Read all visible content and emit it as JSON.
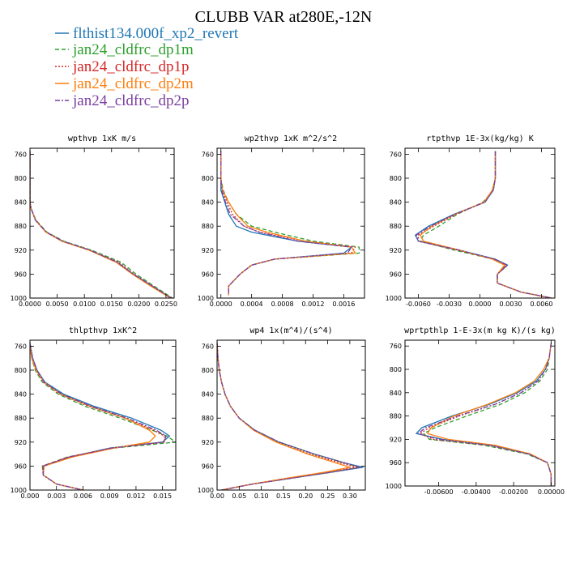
{
  "title": "CLUBB VAR at280E,-12N",
  "legend": [
    {
      "name": "flthist134.000f_xp2_revert",
      "color": "#1f77b4",
      "dash": "solid"
    },
    {
      "name": "jan24_cldfrc_dp1m",
      "color": "#2ca02c",
      "dash": "dash"
    },
    {
      "name": "jan24_cldfrc_dp1p",
      "color": "#d62728",
      "dash": "dot"
    },
    {
      "name": "jan24_cldfrc_dp2m",
      "color": "#ff7f0e",
      "dash": "solid"
    },
    {
      "name": "jan24_cldfrc_dp2p",
      "color": "#7b3fa0",
      "dash": "dashdot"
    }
  ],
  "chart_data": [
    {
      "type": "line",
      "title": "wpthvp  1xK m/s",
      "xlim": [
        0,
        0.0265
      ],
      "ylim": [
        1000,
        750
      ],
      "xticks": [
        0,
        0.005,
        0.01,
        0.015,
        0.02,
        0.025
      ],
      "xtick_labels": [
        "0.0000",
        "0.0050",
        "0.0100",
        "0.0150",
        "0.0200",
        "0.0250"
      ],
      "yticks": [
        760,
        800,
        840,
        880,
        920,
        960,
        1000
      ],
      "ytick_labels": [
        "760",
        "800",
        "840",
        "880",
        "920",
        "960",
        "1000"
      ],
      "y": [
        755,
        800,
        840,
        850,
        870,
        890,
        905,
        920,
        940,
        960,
        980,
        1000
      ],
      "series": [
        {
          "name": "flthist134.000f_xp2_revert",
          "x": [
            0,
            0,
            0,
            0.0002,
            0.001,
            0.003,
            0.006,
            0.011,
            0.016,
            0.019,
            0.0225,
            0.026
          ]
        },
        {
          "name": "jan24_cldfrc_dp1m",
          "x": [
            0,
            0,
            0,
            0.0002,
            0.0011,
            0.0031,
            0.0062,
            0.0113,
            0.0167,
            0.0195,
            0.0228,
            0.0262
          ]
        },
        {
          "name": "jan24_cldfrc_dp1p",
          "x": [
            0,
            0,
            0,
            0.0002,
            0.001,
            0.003,
            0.006,
            0.011,
            0.0163,
            0.0191,
            0.0226,
            0.026
          ]
        },
        {
          "name": "jan24_cldfrc_dp2m",
          "x": [
            0,
            0,
            0,
            0.0002,
            0.001,
            0.0029,
            0.0058,
            0.0108,
            0.0158,
            0.0188,
            0.0222,
            0.0258
          ]
        },
        {
          "name": "jan24_cldfrc_dp2p",
          "x": [
            0,
            0,
            0,
            0.0002,
            0.001,
            0.003,
            0.006,
            0.011,
            0.016,
            0.019,
            0.0225,
            0.026
          ]
        }
      ]
    },
    {
      "type": "line",
      "title": "wp2thvp  1xK m^2/s^2",
      "xlim": [
        -5e-05,
        0.00187
      ],
      "ylim": [
        1000,
        750
      ],
      "xticks": [
        0,
        0.0004,
        0.0008,
        0.0012,
        0.0016
      ],
      "xtick_labels": [
        "0.0000",
        "0.0004",
        "0.0008",
        "0.0012",
        "0.0016"
      ],
      "yticks": [
        760,
        800,
        840,
        880,
        920,
        960,
        1000
      ],
      "ytick_labels": [
        "760",
        "800",
        "840",
        "880",
        "920",
        "960",
        "1000"
      ],
      "y": [
        755,
        800,
        820,
        840,
        860,
        880,
        890,
        905,
        915,
        925,
        935,
        945,
        960,
        980,
        995
      ],
      "series": [
        {
          "name": "flthist134.000f_xp2_revert",
          "x": [
            0,
            0,
            0,
            5e-05,
            0.0001,
            0.0002,
            0.0004,
            0.001,
            0.0017,
            0.0016,
            0.0007,
            0.0004,
            0.00025,
            0.0001,
            0.0001
          ]
        },
        {
          "name": "jan24_cldfrc_dp1m",
          "x": [
            0,
            0,
            3e-05,
            0.0001,
            0.0002,
            0.0004,
            0.0007,
            0.0012,
            0.0018,
            0.0018,
            0.0007,
            0.0004,
            0.00025,
            0.0001,
            0.0001
          ]
        },
        {
          "name": "jan24_cldfrc_dp1p",
          "x": [
            0,
            0,
            2e-05,
            8e-05,
            0.00015,
            0.0003,
            0.0005,
            0.0011,
            0.00175,
            0.0017,
            0.0007,
            0.0004,
            0.00025,
            0.0001,
            0.0001
          ]
        },
        {
          "name": "jan24_cldfrc_dp2m",
          "x": [
            0,
            0,
            2e-05,
            0.0001,
            0.0002,
            0.00035,
            0.0006,
            0.0011,
            0.0017,
            0.00175,
            0.0007,
            0.0004,
            0.00025,
            0.0001,
            0.0001
          ]
        },
        {
          "name": "jan24_cldfrc_dp2p",
          "x": [
            0,
            0,
            1e-05,
            6e-05,
            0.00012,
            0.0003,
            0.0005,
            0.001,
            0.0017,
            0.00165,
            0.0007,
            0.0004,
            0.00025,
            0.0001,
            0.0001
          ]
        }
      ]
    },
    {
      "type": "line",
      "title": "rtpthvp  1E-3x(kg/kg) K",
      "xlim": [
        -0.0073,
        0.0073
      ],
      "ylim": [
        1000,
        750
      ],
      "xticks": [
        -0.006,
        -0.003,
        0,
        0.003,
        0.006
      ],
      "xtick_labels": [
        "-0.0060",
        "-0.0030",
        "0.0000",
        "0.0030",
        "0.0060"
      ],
      "yticks": [
        760,
        800,
        840,
        880,
        920,
        960,
        1000
      ],
      "ytick_labels": [
        "760",
        "800",
        "840",
        "880",
        "920",
        "960",
        "1000"
      ],
      "y": [
        755,
        800,
        820,
        840,
        860,
        880,
        895,
        905,
        920,
        935,
        945,
        960,
        975,
        990,
        1000
      ],
      "series": [
        {
          "name": "flthist134.000f_xp2_revert",
          "x": [
            0.0015,
            0.0015,
            0.0013,
            0.0005,
            -0.0025,
            -0.005,
            -0.0063,
            -0.006,
            -0.002,
            0.0015,
            0.0027,
            0.0017,
            0.0017,
            0.004,
            0.007
          ]
        },
        {
          "name": "jan24_cldfrc_dp1m",
          "x": [
            0.0015,
            0.0015,
            0.0013,
            0.0003,
            -0.0022,
            -0.004,
            -0.0055,
            -0.0058,
            -0.0025,
            0.0013,
            0.0025,
            0.0017,
            0.0017,
            0.004,
            0.007
          ]
        },
        {
          "name": "jan24_cldfrc_dp1p",
          "x": [
            0.0015,
            0.0015,
            0.0013,
            0.0004,
            -0.0023,
            -0.0045,
            -0.006,
            -0.006,
            -0.0022,
            0.0014,
            0.0026,
            0.0017,
            0.0017,
            0.004,
            0.007
          ]
        },
        {
          "name": "jan24_cldfrc_dp2m",
          "x": [
            0.0015,
            0.0015,
            0.0012,
            0.0004,
            -0.0024,
            -0.0047,
            -0.0058,
            -0.0055,
            -0.002,
            0.0012,
            0.0024,
            0.0017,
            0.0017,
            0.004,
            0.007
          ]
        },
        {
          "name": "jan24_cldfrc_dp2p",
          "x": [
            0.0015,
            0.0015,
            0.0013,
            0.0005,
            -0.0024,
            -0.0048,
            -0.0062,
            -0.006,
            -0.002,
            0.0014,
            0.0027,
            0.0017,
            0.0017,
            0.004,
            0.007
          ]
        }
      ]
    },
    {
      "type": "line",
      "title": "thlpthvp  1xK^2",
      "xlim": [
        0,
        0.0165
      ],
      "ylim": [
        1000,
        750
      ],
      "xticks": [
        0,
        0.003,
        0.006,
        0.009,
        0.012,
        0.015
      ],
      "xtick_labels": [
        "0.000",
        "0.003",
        "0.006",
        "0.009",
        "0.012",
        "0.015"
      ],
      "yticks": [
        760,
        800,
        840,
        880,
        920,
        960,
        1000
      ],
      "ytick_labels": [
        "760",
        "800",
        "840",
        "880",
        "920",
        "960",
        "1000"
      ],
      "y": [
        755,
        780,
        800,
        820,
        840,
        860,
        880,
        900,
        910,
        920,
        930,
        945,
        960,
        975,
        990,
        1000
      ],
      "series": [
        {
          "name": "flthist134.000f_xp2_revert",
          "x": [
            0,
            0.0003,
            0.0008,
            0.0017,
            0.0038,
            0.0072,
            0.0115,
            0.0148,
            0.0158,
            0.015,
            0.009,
            0.0045,
            0.0015,
            0.0015,
            0.003,
            0.006
          ]
        },
        {
          "name": "jan24_cldfrc_dp1m",
          "x": [
            0,
            0.0002,
            0.0006,
            0.0014,
            0.0032,
            0.0062,
            0.0102,
            0.0138,
            0.0155,
            0.0165,
            0.0095,
            0.0042,
            0.0014,
            0.0015,
            0.003,
            0.006
          ]
        },
        {
          "name": "jan24_cldfrc_dp1p",
          "x": [
            0,
            0.0002,
            0.0007,
            0.0015,
            0.0034,
            0.0066,
            0.0107,
            0.014,
            0.0152,
            0.0152,
            0.0092,
            0.0043,
            0.0014,
            0.0015,
            0.003,
            0.006
          ]
        },
        {
          "name": "jan24_cldfrc_dp2m",
          "x": [
            0,
            0.0002,
            0.0007,
            0.0016,
            0.0035,
            0.0068,
            0.0108,
            0.0135,
            0.0142,
            0.0135,
            0.0095,
            0.0048,
            0.0016,
            0.0015,
            0.003,
            0.006
          ]
        },
        {
          "name": "jan24_cldfrc_dp2p",
          "x": [
            0,
            0.0003,
            0.0008,
            0.0016,
            0.0036,
            0.0069,
            0.011,
            0.0143,
            0.0154,
            0.0152,
            0.0092,
            0.0044,
            0.0015,
            0.0015,
            0.003,
            0.006
          ]
        }
      ]
    },
    {
      "type": "line",
      "title": "wp4  1x(m^4)/(s^4)",
      "xlim": [
        0,
        0.335
      ],
      "ylim": [
        1000,
        750
      ],
      "xticks": [
        0,
        0.05,
        0.1,
        0.15,
        0.2,
        0.25,
        0.3
      ],
      "xtick_labels": [
        "0.00",
        "0.05",
        "0.10",
        "0.15",
        "0.20",
        "0.25",
        "0.30"
      ],
      "yticks": [
        760,
        800,
        840,
        880,
        920,
        960,
        1000
      ],
      "ytick_labels": [
        "760",
        "800",
        "840",
        "880",
        "920",
        "960",
        "1000"
      ],
      "y": [
        755,
        780,
        800,
        820,
        840,
        860,
        880,
        900,
        920,
        940,
        955,
        962,
        970,
        980,
        990,
        1000
      ],
      "series": [
        {
          "name": "flthist134.000f_xp2_revert",
          "x": [
            0,
            0.002,
            0.005,
            0.01,
            0.018,
            0.03,
            0.05,
            0.085,
            0.14,
            0.22,
            0.29,
            0.33,
            0.26,
            0.17,
            0.08,
            0.01
          ]
        },
        {
          "name": "jan24_cldfrc_dp1m",
          "x": [
            0,
            0.002,
            0.005,
            0.01,
            0.018,
            0.03,
            0.05,
            0.085,
            0.14,
            0.22,
            0.29,
            0.32,
            0.26,
            0.17,
            0.08,
            0.01
          ]
        },
        {
          "name": "jan24_cldfrc_dp1p",
          "x": [
            0,
            0.002,
            0.005,
            0.01,
            0.018,
            0.03,
            0.05,
            0.083,
            0.135,
            0.21,
            0.28,
            0.315,
            0.25,
            0.165,
            0.08,
            0.01
          ]
        },
        {
          "name": "jan24_cldfrc_dp2m",
          "x": [
            0,
            0.002,
            0.005,
            0.01,
            0.018,
            0.03,
            0.05,
            0.082,
            0.133,
            0.205,
            0.27,
            0.3,
            0.245,
            0.16,
            0.078,
            0.01
          ]
        },
        {
          "name": "jan24_cldfrc_dp2p",
          "x": [
            0,
            0.002,
            0.005,
            0.01,
            0.018,
            0.03,
            0.05,
            0.085,
            0.14,
            0.22,
            0.29,
            0.325,
            0.26,
            0.17,
            0.08,
            0.01
          ]
        }
      ]
    },
    {
      "type": "line",
      "title": "wprtpthlp  1-E-3x(m kg K)/(s kg)",
      "xlim": [
        -0.0078,
        0.0002
      ],
      "ylim": [
        1000,
        750
      ],
      "xticks": [
        -0.006,
        -0.004,
        -0.002,
        0
      ],
      "xtick_labels": [
        "-0.00600",
        "-0.00400",
        "-0.00200",
        "0.00000"
      ],
      "yticks": [
        760,
        800,
        840,
        880,
        920,
        960,
        1000
      ],
      "ytick_labels": [
        "760",
        "800",
        "840",
        "880",
        "920",
        "960",
        "1000"
      ],
      "y": [
        755,
        780,
        800,
        820,
        840,
        860,
        880,
        900,
        910,
        920,
        930,
        945,
        960,
        980,
        1000
      ],
      "series": [
        {
          "name": "flthist134.000f_xp2_revert",
          "x": [
            0,
            -0.0001,
            -0.0003,
            -0.0008,
            -0.0018,
            -0.0033,
            -0.0053,
            -0.0069,
            -0.0072,
            -0.0058,
            -0.0032,
            -0.0012,
            -0.0002,
            0,
            0
          ]
        },
        {
          "name": "jan24_cldfrc_dp1m",
          "x": [
            0,
            -0.0001,
            -0.0002,
            -0.0006,
            -0.0014,
            -0.0027,
            -0.0045,
            -0.0062,
            -0.0068,
            -0.0065,
            -0.0036,
            -0.0013,
            -0.0002,
            0,
            0
          ]
        },
        {
          "name": "jan24_cldfrc_dp1p",
          "x": [
            0,
            -0.0001,
            -0.0003,
            -0.0007,
            -0.0016,
            -0.003,
            -0.0049,
            -0.0065,
            -0.007,
            -0.0063,
            -0.0034,
            -0.0012,
            -0.0002,
            0,
            0
          ]
        },
        {
          "name": "jan24_cldfrc_dp2m",
          "x": [
            0,
            -0.0001,
            -0.0004,
            -0.0009,
            -0.0019,
            -0.0034,
            -0.0052,
            -0.0064,
            -0.0066,
            -0.0055,
            -0.003,
            -0.0011,
            -0.0002,
            0,
            0
          ]
        },
        {
          "name": "jan24_cldfrc_dp2p",
          "x": [
            0,
            -0.0001,
            -0.0003,
            -0.0007,
            -0.0016,
            -0.003,
            -0.005,
            -0.0067,
            -0.0071,
            -0.006,
            -0.0033,
            -0.0012,
            -0.0002,
            0,
            0
          ]
        }
      ]
    }
  ]
}
